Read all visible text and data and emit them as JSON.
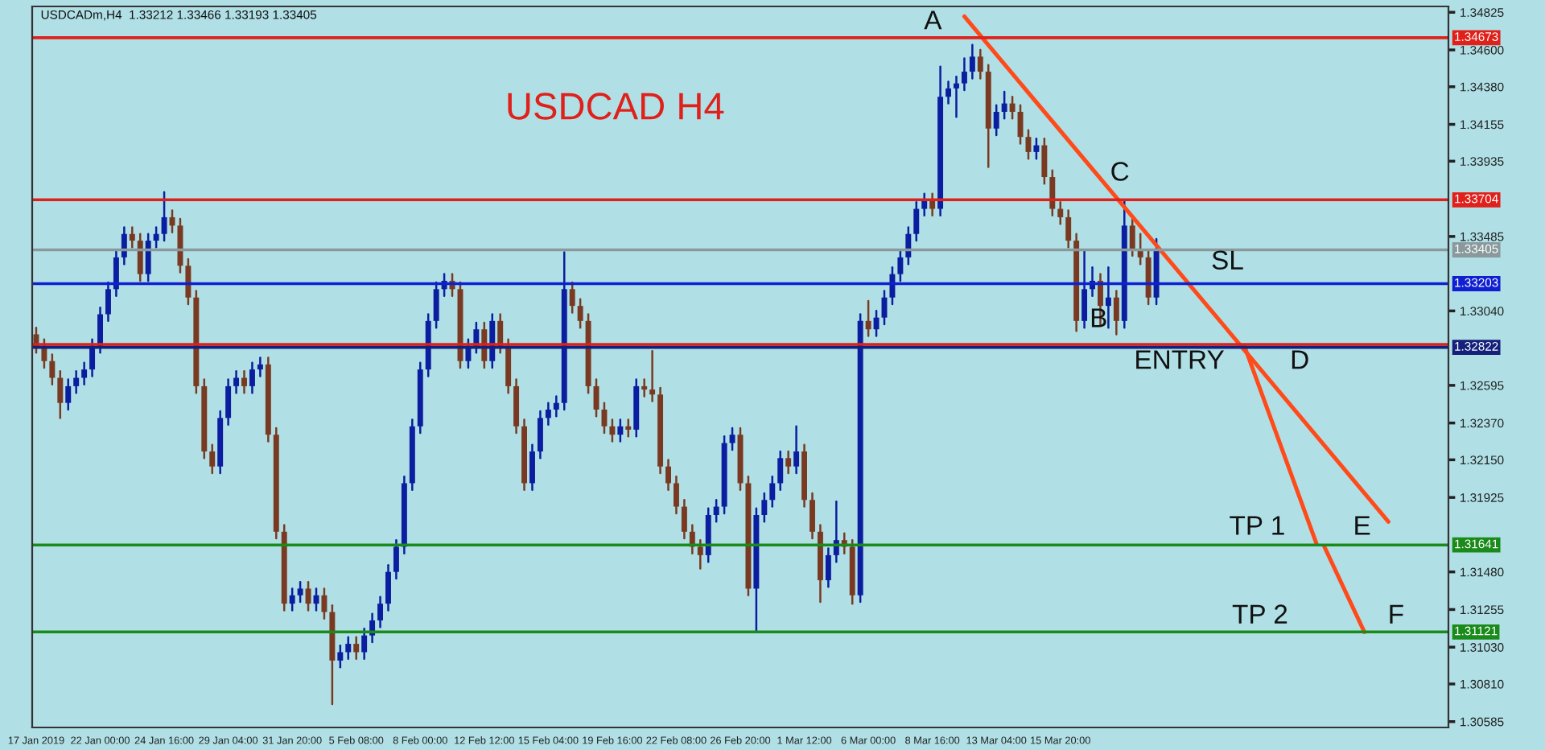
{
  "chart_data": {
    "type": "candlestick",
    "title": "USDCADm,H4  1.33212 1.33466 1.33193 1.33405",
    "annotations": [
      "USDCAD H4",
      "A",
      "B",
      "C",
      "SL",
      "ENTRY",
      "D",
      "TP 1",
      "E",
      "TP 2",
      "F"
    ],
    "categories": [
      "17 Jan 2019",
      null,
      null,
      null,
      null,
      null,
      null,
      null,
      "22 Jan 00:00",
      null,
      null,
      null,
      null,
      null,
      null,
      null,
      "24 Jan 16:00",
      null,
      null,
      null,
      null,
      null,
      null,
      null,
      "29 Jan 04:00",
      null,
      null,
      null,
      null,
      null,
      null,
      null,
      "31 Jan 20:00",
      null,
      null,
      null,
      null,
      null,
      null,
      null,
      "5 Feb 08:00",
      null,
      null,
      null,
      null,
      null,
      null,
      null,
      "8 Feb 00:00",
      null,
      null,
      null,
      null,
      null,
      null,
      null,
      "12 Feb 12:00",
      null,
      null,
      null,
      null,
      null,
      null,
      null,
      "15 Feb 04:00",
      null,
      null,
      null,
      null,
      null,
      null,
      null,
      "19 Feb 16:00",
      null,
      null,
      null,
      null,
      null,
      null,
      null,
      "22 Feb 08:00",
      null,
      null,
      null,
      null,
      null,
      null,
      null,
      "26 Feb 20:00",
      null,
      null,
      null,
      null,
      null,
      null,
      null,
      "1 Mar 12:00",
      null,
      null,
      null,
      null,
      null,
      null,
      null,
      "6 Mar 00:00",
      null,
      null,
      null,
      null,
      null,
      null,
      null,
      "8 Mar 16:00",
      null,
      null,
      null,
      null,
      null,
      null,
      null,
      "13 Mar 04:00",
      null,
      null,
      null,
      null,
      null,
      null,
      null,
      "15 Mar 20:00",
      null,
      null,
      null,
      null,
      null,
      null,
      null,
      null,
      null,
      null,
      null,
      null,
      null,
      null,
      null,
      null,
      null,
      null,
      null,
      null,
      null,
      null,
      null,
      null,
      null,
      null,
      null,
      null,
      null,
      null,
      null,
      null,
      null,
      null,
      null,
      null,
      null,
      null,
      null,
      null,
      null,
      null,
      null,
      null,
      null,
      null,
      null,
      null
    ],
    "colors": [
      "#7a3a22",
      "#7a3a22",
      "#7a3a22",
      "#7a3a22",
      "#0c1ea0",
      "#0c1ea0",
      "#0c1ea0",
      "#0c1ea0",
      "#0c1ea0",
      "#0c1ea0",
      "#0c1ea0",
      "#0c1ea0",
      "#7a3a22",
      "#7a3a22",
      "#0c1ea0",
      "#0c1ea0",
      "#0c1ea0",
      "#7a3a22",
      "#7a3a22",
      "#7a3a22",
      "#7a3a22",
      "#7a3a22",
      "#7a3a22",
      "#0c1ea0",
      "#0c1ea0",
      "#0c1ea0",
      "#7a3a22",
      "#0c1ea0",
      "#0c1ea0",
      "#7a3a22",
      "#7a3a22",
      "#7a3a22",
      "#0c1ea0",
      "#0c1ea0",
      "#7a3a22",
      "#0c1ea0",
      "#7a3a22",
      "#7a3a22",
      "#0c1ea0",
      "#0c1ea0",
      "#7a3a22",
      "#0c1ea0",
      "#0c1ea0",
      "#0c1ea0",
      "#0c1ea0",
      "#0c1ea0",
      "#0c1ea0",
      "#0c1ea0",
      "#0c1ea0",
      "#0c1ea0",
      "#0c1ea0",
      "#0c1ea0",
      "#7a3a22",
      "#7a3a22",
      "#0c1ea0",
      "#0c1ea0",
      "#7a3a22",
      "#0c1ea0",
      "#7a3a22",
      "#7a3a22",
      "#7a3a22",
      "#7a3a22",
      "#0c1ea0",
      "#0c1ea0",
      "#0c1ea0",
      "#0c1ea0",
      "#0c1ea0",
      "#7a3a22",
      "#7a3a22",
      "#7a3a22",
      "#7a3a22",
      "#7a3a22",
      "#7a3a22",
      "#0c1ea0",
      "#7a3a22",
      "#0c1ea0",
      "#7a3a22",
      "#7a3a22",
      "#7a3a22",
      "#7a3a22",
      "#7a3a22",
      "#7a3a22",
      "#7a3a22",
      "#7a3a22",
      "#0c1ea0",
      "#0c1ea0",
      "#0c1ea0",
      "#0c1ea0",
      "#7a3a22",
      "#7a3a22",
      "#0c1ea0",
      "#0c1ea0",
      "#0c1ea0",
      "#0c1ea0",
      "#7a3a22",
      "#0c1ea0",
      "#7a3a22",
      "#7a3a22",
      "#7a3a22",
      "#0c1ea0",
      "#0c1ea0",
      "#7a3a22",
      "#7a3a22",
      "#0c1ea0",
      "#7a3a22",
      "#0c1ea0",
      "#0c1ea0",
      "#0c1ea0",
      "#0c1ea0",
      "#0c1ea0",
      "#0c1ea0",
      "#0c1ea0",
      "#7a3a22",
      "#0c1ea0",
      "#0c1ea0",
      "#0c1ea0",
      "#0c1ea0",
      "#0c1ea0",
      "#7a3a22",
      "#7a3a22",
      "#0c1ea0",
      "#0c1ea0",
      "#7a3a22",
      "#7a3a22",
      "#7a3a22",
      "#0c1ea0",
      "#7a3a22",
      "#7a3a22",
      "#7a3a22",
      "#7a3a22",
      "#7a3a22",
      "#0c1ea0",
      "#0c1ea0",
      "#7a3a22",
      "#0c1ea0",
      "#7a3a22",
      "#0c1ea0",
      "#7a3a22",
      "#7a3a22",
      "#7a3a22",
      "#0c1ea0",
      null,
      null,
      null,
      null,
      null,
      null,
      null,
      null,
      null,
      null,
      null,
      null,
      null,
      null,
      null,
      null,
      null,
      null,
      null,
      null,
      null,
      null,
      null,
      null,
      null,
      null,
      null,
      null,
      null,
      null,
      null,
      null,
      null,
      null,
      null,
      null
    ],
    "ohlc": [
      [
        1.329,
        1.3294,
        1.3279,
        1.3283
      ],
      [
        1.3283,
        1.3287,
        1.327,
        1.3274
      ],
      [
        1.3274,
        1.3278,
        1.326,
        1.3264
      ],
      [
        1.3264,
        1.3268,
        1.324,
        1.3249
      ],
      [
        1.3249,
        1.3263,
        1.3245,
        1.3259
      ],
      [
        1.3259,
        1.3268,
        1.3255,
        1.3264
      ],
      [
        1.3264,
        1.3273,
        1.326,
        1.3269
      ],
      [
        1.3269,
        1.3287,
        1.3265,
        1.3283
      ],
      [
        1.3283,
        1.3306,
        1.3279,
        1.3302
      ],
      [
        1.3302,
        1.3321,
        1.3298,
        1.3317
      ],
      [
        1.3317,
        1.334,
        1.3313,
        1.3336
      ],
      [
        1.3336,
        1.3354,
        1.3332,
        1.335
      ],
      [
        1.335,
        1.3354,
        1.3342,
        1.3346
      ],
      [
        1.3346,
        1.335,
        1.3322,
        1.3326
      ],
      [
        1.3326,
        1.335,
        1.3322,
        1.3346
      ],
      [
        1.3346,
        1.3354,
        1.3342,
        1.335
      ],
      [
        1.335,
        1.3375,
        1.3346,
        1.336
      ],
      [
        1.336,
        1.3364,
        1.3351,
        1.3355
      ],
      [
        1.3355,
        1.3359,
        1.3327,
        1.3331
      ],
      [
        1.3331,
        1.3335,
        1.3308,
        1.3312
      ],
      [
        1.3312,
        1.3316,
        1.3255,
        1.3259
      ],
      [
        1.3259,
        1.3263,
        1.3216,
        1.322
      ],
      [
        1.322,
        1.3224,
        1.3207,
        1.3211
      ],
      [
        1.3211,
        1.3244,
        1.3207,
        1.324
      ],
      [
        1.324,
        1.3263,
        1.3236,
        1.3259
      ],
      [
        1.3259,
        1.3268,
        1.3255,
        1.3264
      ],
      [
        1.3264,
        1.3268,
        1.3255,
        1.3259
      ],
      [
        1.3259,
        1.3273,
        1.3255,
        1.3269
      ],
      [
        1.3269,
        1.3276,
        1.3265,
        1.3272
      ],
      [
        1.3272,
        1.3276,
        1.3226,
        1.323
      ],
      [
        1.323,
        1.3234,
        1.3168,
        1.3172
      ],
      [
        1.3172,
        1.3176,
        1.3125,
        1.3129
      ],
      [
        1.3129,
        1.3138,
        1.3125,
        1.3134
      ],
      [
        1.3134,
        1.3142,
        1.313,
        1.3138
      ],
      [
        1.3138,
        1.3142,
        1.3125,
        1.3129
      ],
      [
        1.3129,
        1.3138,
        1.3125,
        1.3134
      ],
      [
        1.3134,
        1.3138,
        1.312,
        1.3124
      ],
      [
        1.3124,
        1.3128,
        1.3069,
        1.3095
      ],
      [
        1.3095,
        1.3104,
        1.3091,
        1.31
      ],
      [
        1.31,
        1.3109,
        1.3096,
        1.3105
      ],
      [
        1.3105,
        1.3109,
        1.3096,
        1.31
      ],
      [
        1.31,
        1.3114,
        1.3096,
        1.311
      ],
      [
        1.311,
        1.3123,
        1.3106,
        1.3119
      ],
      [
        1.3119,
        1.3133,
        1.3115,
        1.3129
      ],
      [
        1.3129,
        1.3152,
        1.3125,
        1.3148
      ],
      [
        1.3148,
        1.3167,
        1.3144,
        1.3163
      ],
      [
        1.3163,
        1.3205,
        1.3159,
        1.3201
      ],
      [
        1.3201,
        1.3239,
        1.3197,
        1.3235
      ],
      [
        1.3235,
        1.3273,
        1.3231,
        1.3269
      ],
      [
        1.3269,
        1.3302,
        1.3265,
        1.3298
      ],
      [
        1.3298,
        1.3321,
        1.3294,
        1.3317
      ],
      [
        1.3317,
        1.3326,
        1.3313,
        1.3322
      ],
      [
        1.3322,
        1.3326,
        1.3313,
        1.3317
      ],
      [
        1.3317,
        1.3321,
        1.327,
        1.3274
      ],
      [
        1.3274,
        1.3287,
        1.327,
        1.3283
      ],
      [
        1.3283,
        1.3297,
        1.3279,
        1.3293
      ],
      [
        1.3293,
        1.3297,
        1.327,
        1.3274
      ],
      [
        1.3274,
        1.3302,
        1.327,
        1.3298
      ],
      [
        1.3298,
        1.3302,
        1.3279,
        1.3283
      ],
      [
        1.3283,
        1.3287,
        1.3255,
        1.3259
      ],
      [
        1.3259,
        1.3263,
        1.3231,
        1.3235
      ],
      [
        1.3235,
        1.3239,
        1.3197,
        1.3201
      ],
      [
        1.3201,
        1.3224,
        1.3197,
        1.322
      ],
      [
        1.322,
        1.3244,
        1.3216,
        1.324
      ],
      [
        1.324,
        1.3249,
        1.3236,
        1.3245
      ],
      [
        1.3245,
        1.3253,
        1.3241,
        1.3249
      ],
      [
        1.3249,
        1.3339,
        1.3245,
        1.3317
      ],
      [
        1.3317,
        1.3321,
        1.3303,
        1.3307
      ],
      [
        1.3307,
        1.3311,
        1.3294,
        1.3298
      ],
      [
        1.3298,
        1.3302,
        1.3255,
        1.3259
      ],
      [
        1.3259,
        1.3263,
        1.3241,
        1.3245
      ],
      [
        1.3245,
        1.3249,
        1.3231,
        1.3235
      ],
      [
        1.3235,
        1.3239,
        1.3226,
        1.323
      ],
      [
        1.323,
        1.3239,
        1.3226,
        1.3235
      ],
      [
        1.3235,
        1.3239,
        1.3229,
        1.3233
      ],
      [
        1.3233,
        1.3263,
        1.3229,
        1.3259
      ],
      [
        1.3259,
        1.3263,
        1.3253,
        1.3257
      ],
      [
        1.3257,
        1.328,
        1.325,
        1.3254
      ],
      [
        1.3254,
        1.3258,
        1.3207,
        1.3211
      ],
      [
        1.3211,
        1.3215,
        1.3197,
        1.3201
      ],
      [
        1.3201,
        1.3205,
        1.3183,
        1.3187
      ],
      [
        1.3187,
        1.3191,
        1.3168,
        1.3172
      ],
      [
        1.3172,
        1.3176,
        1.3159,
        1.3163
      ],
      [
        1.3163,
        1.3167,
        1.315,
        1.3158
      ],
      [
        1.3158,
        1.3186,
        1.3154,
        1.3182
      ],
      [
        1.3182,
        1.3191,
        1.3178,
        1.3187
      ],
      [
        1.3187,
        1.3229,
        1.3183,
        1.3225
      ],
      [
        1.3225,
        1.3234,
        1.3221,
        1.323
      ],
      [
        1.323,
        1.3234,
        1.3197,
        1.3201
      ],
      [
        1.3201,
        1.3205,
        1.3134,
        1.3138
      ],
      [
        1.3138,
        1.3186,
        1.3112,
        1.3182
      ],
      [
        1.3182,
        1.3195,
        1.3178,
        1.3191
      ],
      [
        1.3191,
        1.3205,
        1.3187,
        1.3201
      ],
      [
        1.3201,
        1.322,
        1.3197,
        1.3216
      ],
      [
        1.3216,
        1.322,
        1.3207,
        1.3211
      ],
      [
        1.3211,
        1.3235,
        1.3207,
        1.322
      ],
      [
        1.322,
        1.3224,
        1.3187,
        1.3191
      ],
      [
        1.3191,
        1.3195,
        1.3168,
        1.3172
      ],
      [
        1.3172,
        1.3176,
        1.313,
        1.3143
      ],
      [
        1.3143,
        1.3162,
        1.3139,
        1.3158
      ],
      [
        1.3158,
        1.319,
        1.3154,
        1.3167
      ],
      [
        1.3167,
        1.3171,
        1.3159,
        1.3163
      ],
      [
        1.3163,
        1.3167,
        1.3129,
        1.3134
      ],
      [
        1.3134,
        1.3302,
        1.313,
        1.3298
      ],
      [
        1.3298,
        1.331,
        1.3289,
        1.3293
      ],
      [
        1.3293,
        1.3304,
        1.3289,
        1.33
      ],
      [
        1.33,
        1.3316,
        1.3296,
        1.3312
      ],
      [
        1.3312,
        1.333,
        1.3308,
        1.3326
      ],
      [
        1.3326,
        1.334,
        1.3322,
        1.3336
      ],
      [
        1.3336,
        1.3354,
        1.3332,
        1.335
      ],
      [
        1.335,
        1.3369,
        1.3346,
        1.3365
      ],
      [
        1.3365,
        1.3374,
        1.3361,
        1.337
      ],
      [
        1.337,
        1.3374,
        1.3361,
        1.3365
      ],
      [
        1.3365,
        1.345,
        1.3361,
        1.3432
      ],
      [
        1.3432,
        1.3441,
        1.3428,
        1.3437
      ],
      [
        1.3437,
        1.3444,
        1.342,
        1.344
      ],
      [
        1.344,
        1.3455,
        1.3436,
        1.3447
      ],
      [
        1.3447,
        1.3463,
        1.3443,
        1.3456
      ],
      [
        1.3456,
        1.346,
        1.3443,
        1.3447
      ],
      [
        1.3447,
        1.3451,
        1.339,
        1.3413
      ],
      [
        1.3413,
        1.3427,
        1.3409,
        1.3423
      ],
      [
        1.3423,
        1.3435,
        1.3419,
        1.3428
      ],
      [
        1.3428,
        1.3432,
        1.3419,
        1.3423
      ],
      [
        1.3423,
        1.3427,
        1.3404,
        1.3408
      ],
      [
        1.3408,
        1.3412,
        1.3395,
        1.3399
      ],
      [
        1.3399,
        1.3407,
        1.3395,
        1.3403
      ],
      [
        1.3403,
        1.3407,
        1.338,
        1.3384
      ],
      [
        1.3384,
        1.3388,
        1.3361,
        1.3365
      ],
      [
        1.3365,
        1.3369,
        1.3356,
        1.336
      ],
      [
        1.336,
        1.3364,
        1.3342,
        1.3346
      ],
      [
        1.3346,
        1.335,
        1.3292,
        1.3298
      ],
      [
        1.3298,
        1.334,
        1.3294,
        1.3317
      ],
      [
        1.3317,
        1.333,
        1.3313,
        1.3322
      ],
      [
        1.3322,
        1.3326,
        1.3295,
        1.3307
      ],
      [
        1.3307,
        1.333,
        1.3294,
        1.3312
      ],
      [
        1.3312,
        1.3316,
        1.329,
        1.3298
      ],
      [
        1.3298,
        1.337,
        1.3294,
        1.3355
      ],
      [
        1.3355,
        1.3359,
        1.3337,
        1.3341
      ],
      [
        1.3341,
        1.335,
        1.3332,
        1.3336
      ],
      [
        1.3336,
        1.334,
        1.3308,
        1.3312
      ],
      [
        1.3312,
        1.3347,
        1.3308,
        1.33405
      ],
      null,
      null,
      null,
      null,
      null,
      null,
      null,
      null,
      null,
      null,
      null,
      null,
      null,
      null,
      null,
      null,
      null,
      null,
      null,
      null,
      null,
      null,
      null,
      null,
      null,
      null,
      null,
      null,
      null,
      null,
      null,
      null,
      null,
      null,
      null,
      null
    ],
    "series": [
      {
        "type": "line",
        "color": "#ff4a1a",
        "values": [
          null,
          null,
          null,
          null,
          null,
          null,
          null,
          null,
          null,
          null,
          null,
          null,
          null,
          null,
          null,
          null,
          null,
          null,
          null,
          null,
          null,
          null,
          null,
          null,
          null,
          null,
          null,
          null,
          null,
          null,
          null,
          null,
          null,
          null,
          null,
          null,
          null,
          null,
          null,
          null,
          null,
          null,
          null,
          null,
          null,
          null,
          null,
          null,
          null,
          null,
          null,
          null,
          null,
          null,
          null,
          null,
          null,
          null,
          null,
          null,
          null,
          null,
          null,
          null,
          null,
          null,
          null,
          null,
          null,
          null,
          null,
          null,
          null,
          null,
          null,
          null,
          null,
          null,
          null,
          null,
          null,
          null,
          null,
          null,
          null,
          null,
          null,
          null,
          null,
          null,
          null,
          null,
          null,
          null,
          null,
          null,
          null,
          null,
          null,
          null,
          null,
          null,
          null,
          null,
          null,
          null,
          null,
          null,
          null,
          null,
          null,
          null,
          null,
          null,
          null,
          null,
          1.348,
          null,
          null,
          null,
          null,
          null,
          null,
          null,
          null,
          null,
          null,
          null,
          null,
          null,
          null,
          null,
          null,
          null,
          null,
          null,
          null,
          null,
          null,
          null,
          null,
          null,
          null,
          null,
          null,
          null,
          null,
          null,
          null,
          null,
          null,
          null,
          null,
          null,
          null,
          null,
          null,
          null,
          null,
          null,
          null,
          null,
          null,
          null,
          null,
          null,
          null,
          null,
          null,
          1.3178,
          null,
          null,
          null,
          null,
          null,
          null,
          null
        ]
      },
      {
        "type": "line",
        "color": "#ff4a1a",
        "values": [
          null,
          null,
          null,
          null,
          null,
          null,
          null,
          null,
          null,
          null,
          null,
          null,
          null,
          null,
          null,
          null,
          null,
          null,
          null,
          null,
          null,
          null,
          null,
          null,
          null,
          null,
          null,
          null,
          null,
          null,
          null,
          null,
          null,
          null,
          null,
          null,
          null,
          null,
          null,
          null,
          null,
          null,
          null,
          null,
          null,
          null,
          null,
          null,
          null,
          null,
          null,
          null,
          null,
          null,
          null,
          null,
          null,
          null,
          null,
          null,
          null,
          null,
          null,
          null,
          null,
          null,
          null,
          null,
          null,
          null,
          null,
          null,
          null,
          null,
          null,
          null,
          null,
          null,
          null,
          null,
          null,
          null,
          null,
          null,
          null,
          null,
          null,
          null,
          null,
          null,
          null,
          null,
          null,
          null,
          null,
          null,
          null,
          null,
          null,
          null,
          null,
          null,
          null,
          null,
          null,
          null,
          null,
          null,
          null,
          null,
          null,
          null,
          null,
          null,
          null,
          null,
          null,
          null,
          null,
          null,
          null,
          null,
          null,
          null,
          null,
          null,
          null,
          null,
          null,
          null,
          null,
          null,
          null,
          null,
          null,
          null,
          null,
          null,
          null,
          null,
          null,
          null,
          null,
          null,
          null,
          null,
          null,
          null,
          null,
          null,
          null,
          1.3283,
          null,
          null,
          null,
          null,
          null,
          null,
          null,
          null,
          1.3165,
          null,
          null,
          null,
          null,
          null,
          null,
          null,
          null,
          null,
          null,
          null,
          null,
          null,
          null,
          null,
          null
        ]
      },
      {
        "type": "line",
        "color": "#ff4a1a",
        "values": [
          null,
          null,
          null,
          null,
          null,
          null,
          null,
          null,
          null,
          null,
          null,
          null,
          null,
          null,
          null,
          null,
          null,
          null,
          null,
          null,
          null,
          null,
          null,
          null,
          null,
          null,
          null,
          null,
          null,
          null,
          null,
          null,
          null,
          null,
          null,
          null,
          null,
          null,
          null,
          null,
          null,
          null,
          null,
          null,
          null,
          null,
          null,
          null,
          null,
          null,
          null,
          null,
          null,
          null,
          null,
          null,
          null,
          null,
          null,
          null,
          null,
          null,
          null,
          null,
          null,
          null,
          null,
          null,
          null,
          null,
          null,
          null,
          null,
          null,
          null,
          null,
          null,
          null,
          null,
          null,
          null,
          null,
          null,
          null,
          null,
          null,
          null,
          null,
          null,
          null,
          null,
          null,
          null,
          null,
          null,
          null,
          null,
          null,
          null,
          null,
          null,
          null,
          null,
          null,
          null,
          null,
          null,
          null,
          null,
          null,
          null,
          null,
          null,
          null,
          null,
          null,
          null,
          null,
          null,
          null,
          null,
          null,
          null,
          null,
          null,
          null,
          null,
          null,
          null,
          null,
          null,
          null,
          null,
          null,
          null,
          null,
          null,
          null,
          null,
          null,
          null,
          null,
          null,
          null,
          null,
          null,
          null,
          null,
          null,
          null,
          null,
          null,
          null,
          null,
          null,
          null,
          null,
          null,
          null,
          null,
          null,
          1.3163,
          null,
          null,
          null,
          null,
          1.3112,
          null,
          null,
          null,
          null,
          null,
          null,
          null,
          null,
          null,
          null
        ]
      }
    ],
    "ref_lines": [
      {
        "axis": "y",
        "value": 1.34673,
        "label": "1.34673",
        "color": "#e0201a"
      },
      {
        "axis": "y",
        "value": 1.33704,
        "label": "1.33704",
        "color": "#e0201a"
      },
      {
        "axis": "y",
        "value": 1.33405,
        "label": "1.33405",
        "color": "#8a9a9c"
      },
      {
        "axis": "y",
        "value": 1.33203,
        "label": "1.33203",
        "color": "#1020d0"
      },
      {
        "axis": "y",
        "value": 1.3284,
        "label": null,
        "color": "#e0201a"
      },
      {
        "axis": "y",
        "value": 1.32822,
        "label": "1.32822",
        "color": "#14207a"
      },
      {
        "axis": "y",
        "value": 1.31641,
        "label": "1.31641",
        "color": "#1a8a1a"
      },
      {
        "axis": "y",
        "value": 1.31121,
        "label": "1.31121",
        "color": "#1a8a1a"
      }
    ],
    "ylim": [
      1.3055,
      1.3486
    ],
    "yticks": [
      {
        "value": 1.34825,
        "label": "1.34825"
      },
      {
        "value": 1.346,
        "label": "1.34600"
      },
      {
        "value": 1.3438,
        "label": "1.34380"
      },
      {
        "value": 1.34155,
        "label": "1.34155"
      },
      {
        "value": 1.33935,
        "label": "1.33935"
      },
      {
        "value": 1.33485,
        "label": "1.33485"
      },
      {
        "value": 1.3304,
        "label": "1.33040"
      },
      {
        "value": 1.32595,
        "label": "1.32595"
      },
      {
        "value": 1.3237,
        "label": "1.32370"
      },
      {
        "value": 1.3215,
        "label": "1.32150"
      },
      {
        "value": 1.31925,
        "label": "1.31925"
      },
      {
        "value": 1.3148,
        "label": "1.31480"
      },
      {
        "value": 1.31255,
        "label": "1.31255"
      },
      {
        "value": 1.3103,
        "label": "1.31030"
      },
      {
        "value": 1.3081,
        "label": "1.30810"
      },
      {
        "value": 1.30585,
        "label": "1.30585"
      }
    ],
    "grid": false,
    "legend": false
  }
}
